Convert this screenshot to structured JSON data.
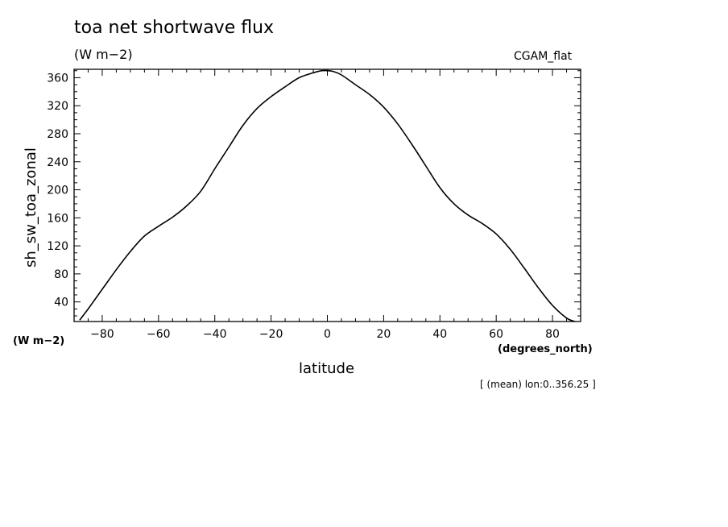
{
  "header": {
    "title": "toa net shortwave flux",
    "subtitle": "(W m−2)",
    "run_label": "CGAM_flat"
  },
  "axes": {
    "y_units_label": "(W m−2)",
    "x_units_label": "(degrees_north)",
    "footnote": "[ (mean) lon:0..356.25 ]"
  },
  "chart_data": {
    "type": "line",
    "title": "toa net shortwave flux",
    "xlabel": "latitude",
    "ylabel": "sh_sw_toa_zonal",
    "xlim": [
      -90,
      90
    ],
    "ylim": [
      12,
      372
    ],
    "xticks": [
      -80,
      -60,
      -40,
      -20,
      0,
      20,
      40,
      60,
      80
    ],
    "xtick_labels": [
      "−80",
      "−60",
      "−40",
      "−20",
      "0",
      "20",
      "40",
      "60",
      "80"
    ],
    "yticks": [
      40,
      80,
      120,
      160,
      200,
      240,
      280,
      320,
      360
    ],
    "grid": false,
    "series": [
      {
        "x": [
          -88,
          -85,
          -80,
          -75,
          -70,
          -65,
          -60,
          -55,
          -50,
          -45,
          -40,
          -35,
          -30,
          -25,
          -20,
          -15,
          -10,
          -5,
          -2,
          0,
          2,
          5,
          10,
          15,
          20,
          25,
          30,
          35,
          40,
          45,
          50,
          55,
          60,
          65,
          70,
          75,
          80,
          85,
          88
        ],
        "y": [
          14,
          30,
          58,
          86,
          112,
          134,
          148,
          161,
          177,
          198,
          230,
          261,
          292,
          316,
          333,
          347,
          360,
          367,
          370,
          370,
          369,
          364,
          350,
          336,
          318,
          294,
          265,
          234,
          203,
          180,
          164,
          152,
          137,
          115,
          88,
          60,
          35,
          17,
          12
        ]
      }
    ]
  }
}
